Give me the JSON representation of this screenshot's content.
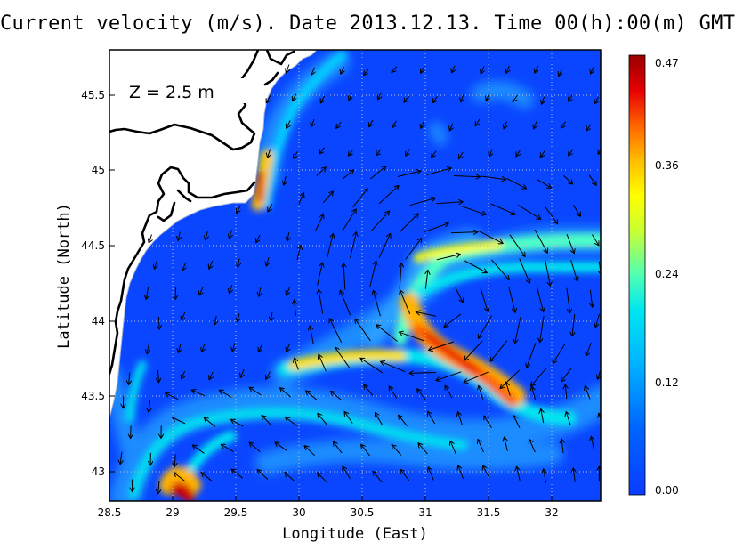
{
  "title": "Current velocity (m/s). Date 2013.12.13. Time 00(h):00(m) GMT",
  "depth_label": "Z  =  2.5  m",
  "x_axis": {
    "label": "Longitude (East)",
    "ticks": [
      "28.5",
      "29",
      "29.5",
      "30",
      "30.5",
      "31",
      "31.5",
      "32"
    ],
    "range": [
      28.5,
      32.4
    ]
  },
  "y_axis": {
    "label": "Latitude (North)",
    "ticks": [
      "43",
      "43.5",
      "44",
      "44.5",
      "45",
      "45.5"
    ],
    "range": [
      42.8,
      45.8
    ]
  },
  "colorbar": {
    "ticks": [
      "0.00",
      "0.12",
      "0.24",
      "0.36",
      "0.47"
    ],
    "range": [
      0.0,
      0.47
    ],
    "colormap": [
      "#0000ff",
      "#0050ff",
      "#00a0ff",
      "#00e6ff",
      "#60ffa0",
      "#c8ff30",
      "#ffff00",
      "#ffb000",
      "#ff5000",
      "#e00000",
      "#9e0000"
    ]
  },
  "grid": "dotted",
  "colors": {
    "land": "#ffffff",
    "coastline": "#000000",
    "low_speed": "#0a46ff"
  }
}
